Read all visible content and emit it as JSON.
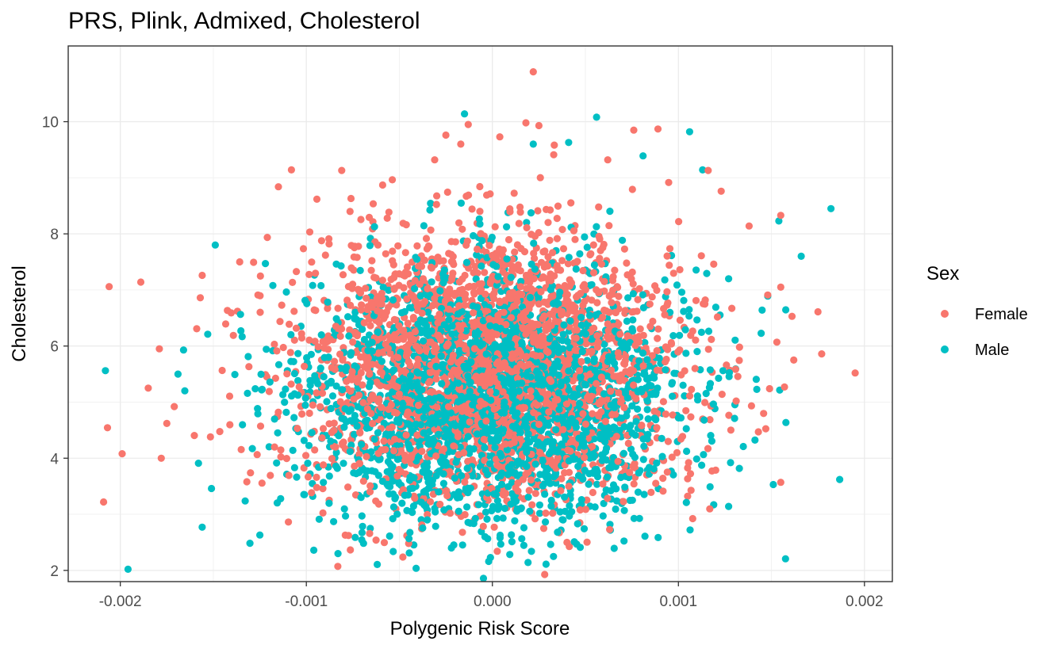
{
  "chart_data": {
    "type": "scatter",
    "title": "PRS, Plink, Admixed, Cholesterol",
    "xlabel": "Polygenic Risk Score",
    "ylabel": "Cholesterol",
    "xlim": [
      -0.00228,
      0.00215
    ],
    "ylim": [
      1.8,
      11.35
    ],
    "x_ticks": [
      -0.002,
      -0.001,
      0.0,
      0.001,
      0.002
    ],
    "x_tick_labels": [
      "-0.002",
      "-0.001",
      "0.000",
      "0.001",
      "0.002"
    ],
    "y_ticks": [
      2,
      4,
      6,
      8,
      10
    ],
    "y_tick_labels": [
      "2",
      "4",
      "6",
      "8",
      "10"
    ],
    "grid": true,
    "legend": {
      "title": "Sex",
      "position": "right"
    },
    "series": [
      {
        "name": "Female",
        "color": "#F8766D",
        "values_summary": {
          "x_mean": 0.0,
          "x_sd": 0.0005,
          "y_mean": 5.6,
          "y_sd": 1.2
        },
        "points": [
          [
            -0.00209,
            3.22
          ],
          [
            -0.00206,
            7.06
          ],
          [
            -0.00189,
            7.14
          ],
          [
            -0.00199,
            4.08
          ],
          [
            -0.00178,
            4.0
          ],
          [
            -0.00179,
            5.95
          ],
          [
            -0.00185,
            5.25
          ],
          [
            -0.00156,
            7.26
          ],
          [
            -0.00108,
            9.14
          ],
          [
            -0.00115,
            8.84
          ],
          [
            -0.00076,
            8.63
          ],
          [
            -0.00081,
            9.13
          ],
          [
            -0.00059,
            8.87
          ],
          [
            -0.00031,
            9.32
          ],
          [
            -0.00025,
            9.76
          ],
          [
            -0.00017,
            9.6
          ],
          [
            -0.00013,
            9.95
          ],
          [
            4e-05,
            9.73
          ],
          [
            0.00018,
            9.98
          ],
          [
            0.00022,
            10.89
          ],
          [
            0.00025,
            9.93
          ],
          [
            0.00033,
            9.41
          ],
          [
            0.00062,
            9.32
          ],
          [
            0.00076,
            9.85
          ],
          [
            0.00089,
            9.87
          ],
          [
            0.00155,
            8.33
          ],
          [
            0.00155,
            7.05
          ],
          [
            0.00148,
            6.91
          ],
          [
            0.00175,
            6.61
          ],
          [
            0.00177,
            5.86
          ],
          [
            0.00162,
            5.75
          ],
          [
            0.00195,
            5.52
          ],
          [
            0.00157,
            5.27
          ],
          [
            0.00149,
            5.24
          ],
          [
            0.00143,
            4.47
          ],
          [
            0.00155,
            3.57
          ],
          [
            -0.00046,
            2.62
          ],
          [
            -0.00045,
            2.48
          ],
          [
            1e-05,
            2.77
          ],
          [
            0.00036,
            2.67
          ],
          [
            0.00047,
            2.85
          ],
          [
            -0.00137,
            6.62
          ],
          [
            -0.00126,
            6.91
          ],
          [
            -0.0013,
            3.74
          ],
          [
            -0.00132,
            3.58
          ],
          [
            -0.00157,
            6.86
          ],
          [
            -0.00171,
            4.92
          ],
          [
            -0.00175,
            4.62
          ],
          [
            0.00138,
            8.14
          ],
          [
            0.00123,
            8.76
          ],
          [
            0.00116,
            9.13
          ]
        ]
      },
      {
        "name": "Male",
        "color": "#00BFC4",
        "values_summary": {
          "x_mean": 0.0,
          "x_sd": 0.0005,
          "y_mean": 5.1,
          "y_sd": 1.1
        },
        "points": [
          [
            -0.00208,
            5.56
          ],
          [
            -0.00156,
            2.77
          ],
          [
            -0.00158,
            3.91
          ],
          [
            -0.00151,
            3.46
          ],
          [
            -0.00125,
            2.63
          ],
          [
            -0.00096,
            2.36
          ],
          [
            -0.00083,
            2.3
          ],
          [
            -2e-05,
            2.16
          ],
          [
            0.00021,
            2.34
          ],
          [
            -0.00022,
            2.4
          ],
          [
            0.00082,
            2.61
          ],
          [
            0.00127,
            3.14
          ],
          [
            0.00151,
            3.53
          ],
          [
            0.00182,
            8.45
          ],
          [
            0.00166,
            7.6
          ],
          [
            0.00154,
            8.23
          ],
          [
            0.00106,
            9.82
          ],
          [
            0.00113,
            9.14
          ],
          [
            0.00056,
            10.08
          ],
          [
            -0.00015,
            10.14
          ],
          [
            0.00022,
            9.6
          ],
          [
            0.00041,
            9.63
          ],
          [
            0.00081,
            9.39
          ],
          [
            -0.00122,
            7.47
          ],
          [
            -0.00118,
            7.08
          ],
          [
            -0.00166,
            5.93
          ],
          [
            -0.00153,
            6.21
          ],
          [
            -0.00169,
            5.5
          ],
          [
            0.00145,
            6.64
          ],
          [
            0.00148,
            6.89
          ],
          [
            0.00127,
            7.2
          ],
          [
            0.00119,
            3.17
          ],
          [
            0.00117,
            3.49
          ],
          [
            0.00128,
            3.92
          ],
          [
            -0.00098,
            3.72
          ],
          [
            -0.00035,
            2.9
          ],
          [
            -0.00053,
            3.13
          ],
          [
            0.00038,
            2.9
          ]
        ]
      }
    ]
  }
}
